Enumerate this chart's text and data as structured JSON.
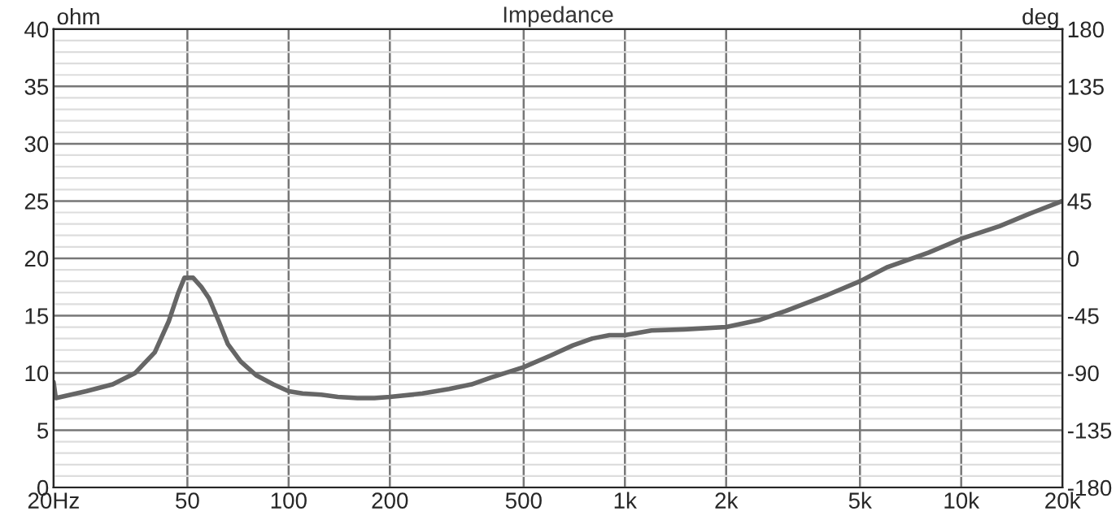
{
  "chart_data": {
    "type": "line",
    "title": "Impedance",
    "ylabel": "ohm",
    "y2label": "deg",
    "x": [
      20,
      20.3,
      25,
      30,
      35,
      40,
      44,
      47,
      49,
      52,
      55,
      58,
      62,
      66,
      72,
      80,
      90,
      100,
      110,
      125,
      140,
      160,
      180,
      200,
      250,
      300,
      350,
      400,
      500,
      600,
      700,
      800,
      900,
      1000,
      1200,
      1500,
      2000,
      2500,
      3000,
      4000,
      5000,
      6000,
      7000,
      8000,
      10000,
      13000,
      16000,
      20000
    ],
    "series": [
      {
        "color": "#666666",
        "values": [
          9.2,
          7.8,
          8.4,
          9.0,
          10.0,
          11.8,
          14.5,
          17.0,
          18.3,
          18.3,
          17.5,
          16.5,
          14.5,
          12.5,
          11.0,
          9.8,
          9.0,
          8.4,
          8.2,
          8.1,
          7.9,
          7.8,
          7.8,
          7.9,
          8.2,
          8.6,
          9.0,
          9.6,
          10.5,
          11.5,
          12.4,
          13.0,
          13.3,
          13.3,
          13.7,
          13.8,
          14.0,
          14.6,
          15.4,
          16.8,
          18.0,
          19.2,
          19.9,
          20.5,
          21.7,
          22.8,
          23.9,
          25.0
        ]
      }
    ],
    "log": "x",
    "xlim": [
      20,
      20000
    ],
    "xticks": [
      {
        "value": 20,
        "label": "20Hz"
      },
      50,
      100,
      200,
      500,
      {
        "value": 1000,
        "label": "1k"
      },
      {
        "value": 2000,
        "label": "2k"
      },
      {
        "value": 5000,
        "label": "5k"
      },
      {
        "value": 10000,
        "label": "10k"
      },
      {
        "value": 20000,
        "label": "20k"
      }
    ],
    "ylim": [
      0,
      40
    ],
    "yticks": [
      0,
      5,
      10,
      15,
      20,
      25,
      30,
      35,
      40
    ],
    "y2lim": [
      -180,
      180
    ],
    "y2ticks": [
      -180,
      -135,
      -90,
      -45,
      0,
      45,
      90,
      135,
      180
    ],
    "grid": true,
    "marker": "none",
    "line_style": "solid"
  }
}
